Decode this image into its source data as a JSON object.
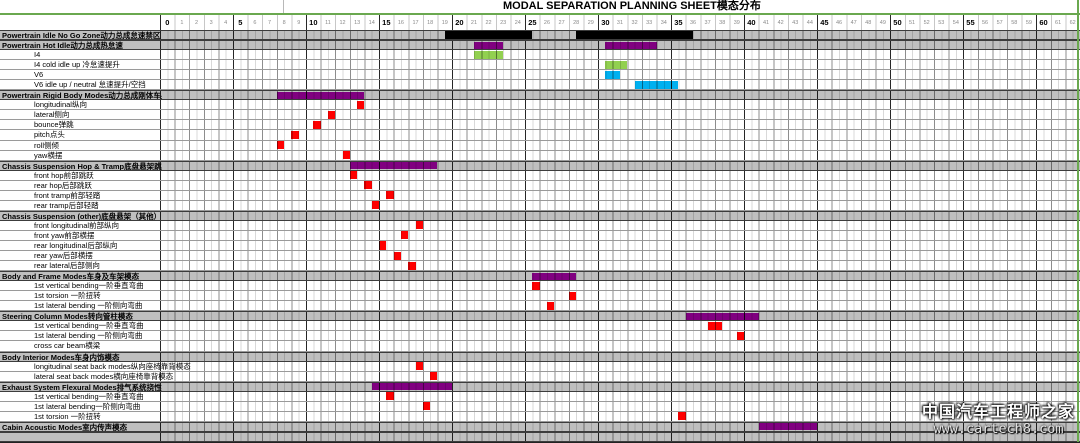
{
  "title": "MODAL SEPARATION PLANNING SHEET模态分布",
  "watermark": {
    "line1": "中国汽车工程师之家",
    "line2": "www.cartech8.com"
  },
  "colors": {
    "black": "#000000",
    "purple": "#800080",
    "green": "#92d050",
    "cyan": "#00b0f0",
    "red": "#ff0000",
    "header_fill": "#bfbfbf",
    "accent_line": "#6aa84f"
  },
  "chart_data": {
    "type": "bar",
    "orientation": "horizontal-frequency-ranges",
    "title": "MODAL SEPARATION PLANNING SHEET模态分布",
    "x_axis": {
      "min": 0,
      "max": 62,
      "tick_step": 1,
      "bold_tick_step": 5,
      "minor_cell_step": 0.5,
      "grid": true
    },
    "legend_position": "none",
    "rows": [
      {
        "label": "Powertrain Idle No Go Zone",
        "label_zh": "动力总成怠速禁区",
        "type": "header",
        "bars": [
          {
            "s": 19.5,
            "e": 25.5,
            "c": "black"
          },
          {
            "s": 28.5,
            "e": 36.5,
            "c": "black"
          }
        ]
      },
      {
        "label": "Powertrain Hot Idle",
        "label_zh": "动力总成热怠速",
        "type": "header",
        "bars": [
          {
            "s": 21.5,
            "e": 23.5,
            "c": "purple"
          },
          {
            "s": 30.5,
            "e": 34,
            "c": "purple"
          }
        ]
      },
      {
        "label": "I4",
        "label_zh": "",
        "type": "child",
        "bars": [
          {
            "s": 21.5,
            "e": 23.5,
            "c": "green"
          }
        ]
      },
      {
        "label": "I4 cold idle up ",
        "label_zh": "冷怠速提升",
        "type": "child",
        "bars": [
          {
            "s": 30.5,
            "e": 32,
            "c": "green"
          }
        ]
      },
      {
        "label": "V6",
        "label_zh": "",
        "type": "child",
        "bars": [
          {
            "s": 30.5,
            "e": 31.5,
            "c": "cyan"
          }
        ]
      },
      {
        "label": "V6 idle up / neutral ",
        "label_zh": "怠速提升/空挡",
        "type": "child",
        "bars": [
          {
            "s": 32.5,
            "e": 35.5,
            "c": "cyan"
          }
        ]
      },
      {
        "label": "Powertrain Rigid Body Modes",
        "label_zh": "动力总成刚体车身模态",
        "type": "header",
        "bars": [
          {
            "s": 8,
            "e": 14,
            "c": "purple"
          }
        ]
      },
      {
        "label": "longitudinal",
        "label_zh": "纵向",
        "type": "child",
        "bars": [
          {
            "s": 13.5,
            "e": 14,
            "c": "red"
          }
        ]
      },
      {
        "label": "lateral",
        "label_zh": "侧向",
        "type": "child",
        "bars": [
          {
            "s": 11.5,
            "e": 12,
            "c": "red"
          }
        ]
      },
      {
        "label": "bounce",
        "label_zh": "弹跳",
        "type": "child",
        "bars": [
          {
            "s": 10.5,
            "e": 11,
            "c": "red"
          }
        ]
      },
      {
        "label": "pitch",
        "label_zh": "点头",
        "type": "child",
        "bars": [
          {
            "s": 9,
            "e": 9.5,
            "c": "red"
          }
        ]
      },
      {
        "label": "roll",
        "label_zh": "侧倾",
        "type": "child",
        "bars": [
          {
            "s": 8,
            "e": 8.5,
            "c": "red"
          }
        ]
      },
      {
        "label": "yaw",
        "label_zh": "横摆",
        "type": "child",
        "bars": [
          {
            "s": 12.5,
            "e": 13,
            "c": "red"
          }
        ]
      },
      {
        "label": "Chassis Suspension Hop & Tramp",
        "label_zh": "底盘悬架跳跃&轻踏",
        "type": "header",
        "bars": [
          {
            "s": 13,
            "e": 19,
            "c": "purple"
          }
        ]
      },
      {
        "label": "front hop",
        "label_zh": "前部跳跃",
        "type": "child",
        "bars": [
          {
            "s": 13,
            "e": 13.5,
            "c": "red"
          }
        ]
      },
      {
        "label": "rear hop",
        "label_zh": "后部跳跃",
        "type": "child",
        "bars": [
          {
            "s": 14,
            "e": 14.5,
            "c": "red"
          }
        ]
      },
      {
        "label": "front tramp",
        "label_zh": "前部轻踏",
        "type": "child",
        "bars": [
          {
            "s": 15.5,
            "e": 16,
            "c": "red"
          }
        ]
      },
      {
        "label": "rear tramp",
        "label_zh": "后部轻踏",
        "type": "child",
        "bars": [
          {
            "s": 14.5,
            "e": 15,
            "c": "red"
          }
        ]
      },
      {
        "label": "Chassis Suspension (other)",
        "label_zh": "底盘悬架（其他）",
        "type": "header",
        "bars": []
      },
      {
        "label": "front longitudinal",
        "label_zh": "前部纵向",
        "type": "child",
        "bars": [
          {
            "s": 17.5,
            "e": 18,
            "c": "red"
          }
        ]
      },
      {
        "label": "front yaw",
        "label_zh": "前部横摆",
        "type": "child",
        "bars": [
          {
            "s": 16.5,
            "e": 17,
            "c": "red"
          }
        ]
      },
      {
        "label": "rear longitudinal",
        "label_zh": "后部纵向",
        "type": "child",
        "bars": [
          {
            "s": 15,
            "e": 15.5,
            "c": "red"
          }
        ]
      },
      {
        "label": "rear yaw",
        "label_zh": "后部横摆",
        "type": "child",
        "bars": [
          {
            "s": 16,
            "e": 16.5,
            "c": "red"
          }
        ]
      },
      {
        "label": "rear lateral",
        "label_zh": "后部侧向",
        "type": "child",
        "bars": [
          {
            "s": 17,
            "e": 17.5,
            "c": "red"
          }
        ]
      },
      {
        "label": "Body and Frame Modes",
        "label_zh": "车身及车架模态",
        "type": "header",
        "bars": [
          {
            "s": 25.5,
            "e": 28.5,
            "c": "purple"
          }
        ]
      },
      {
        "label": "1st vertical bending",
        "label_zh": "一阶垂直弯曲",
        "type": "child",
        "bars": [
          {
            "s": 25.5,
            "e": 26,
            "c": "red"
          }
        ]
      },
      {
        "label": "1st torsion ",
        "label_zh": "一阶扭转",
        "type": "child",
        "bars": [
          {
            "s": 28,
            "e": 28.5,
            "c": "red"
          }
        ]
      },
      {
        "label": "1st lateral bending ",
        "label_zh": "一阶侧向弯曲",
        "type": "child",
        "bars": [
          {
            "s": 26.5,
            "e": 27,
            "c": "red"
          }
        ]
      },
      {
        "label": "Steering Column Modes",
        "label_zh": "转向管柱模态",
        "type": "header",
        "bars": [
          {
            "s": 36,
            "e": 41,
            "c": "purple"
          }
        ]
      },
      {
        "label": "1st vertical bending",
        "label_zh": "一阶垂直弯曲",
        "type": "child",
        "bars": [
          {
            "s": 37.5,
            "e": 38.5,
            "c": "red"
          }
        ]
      },
      {
        "label": "1st lateral bending ",
        "label_zh": "一阶侧向弯曲",
        "type": "child",
        "bars": [
          {
            "s": 39.5,
            "e": 40,
            "c": "red"
          }
        ]
      },
      {
        "label": "cross car beam",
        "label_zh": "横梁",
        "type": "child",
        "bars": []
      },
      {
        "label": "Body Interior Modes",
        "label_zh": "车身内饰模态",
        "type": "header",
        "bars": []
      },
      {
        "label": "longitudinal seat back modes",
        "label_zh": "纵向座椅靠背模态",
        "type": "child",
        "bars": [
          {
            "s": 17.5,
            "e": 18,
            "c": "red"
          }
        ]
      },
      {
        "label": "lateral seat back modes",
        "label_zh": "横向座椅靠背模态",
        "type": "child",
        "bars": [
          {
            "s": 18.5,
            "e": 19,
            "c": "red"
          }
        ]
      },
      {
        "label": "Exhaust System Flexural Modes",
        "label_zh": "排气系统挠性模态",
        "type": "header",
        "bars": [
          {
            "s": 14.5,
            "e": 20,
            "c": "purple"
          }
        ]
      },
      {
        "label": "1st vertical bending",
        "label_zh": "一阶垂直弯曲",
        "type": "child",
        "bars": [
          {
            "s": 15.5,
            "e": 16,
            "c": "red"
          }
        ]
      },
      {
        "label": "1st lateral bending",
        "label_zh": "一阶侧向弯曲",
        "type": "child",
        "bars": [
          {
            "s": 18,
            "e": 18.5,
            "c": "red"
          }
        ]
      },
      {
        "label": "1st torsion ",
        "label_zh": "一阶扭转",
        "type": "child",
        "bars": [
          {
            "s": 35.5,
            "e": 36,
            "c": "red"
          }
        ]
      },
      {
        "label": "Cabin Acoustic Modes",
        "label_zh": "室内传声模态",
        "type": "header",
        "bars": [
          {
            "s": 41,
            "e": 45,
            "c": "purple"
          }
        ]
      },
      {
        "label": "",
        "label_zh": "",
        "type": "header",
        "bars": []
      }
    ]
  }
}
